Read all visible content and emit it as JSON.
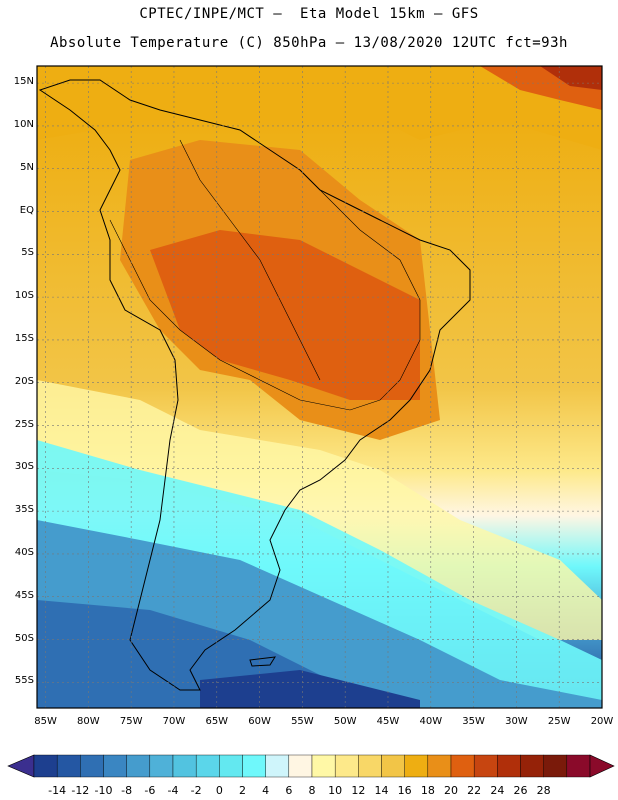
{
  "header": {
    "line1": "CPTEC/INPE/MCT –  Eta Model 15km – GFS",
    "line2": "Absolute Temperature (C) 850hPa – 13/08/2020 12UTC fct=93h"
  },
  "axes": {
    "lat_labels": [
      "15N",
      "10N",
      "5N",
      "EQ",
      "5S",
      "10S",
      "15S",
      "20S",
      "25S",
      "30S",
      "35S",
      "40S",
      "45S",
      "50S",
      "55S"
    ],
    "lat_values": [
      15,
      10,
      5,
      0,
      -5,
      -10,
      -15,
      -20,
      -25,
      -30,
      -35,
      -40,
      -45,
      -50,
      -55
    ],
    "lon_labels": [
      "85W",
      "80W",
      "75W",
      "70W",
      "65W",
      "60W",
      "55W",
      "50W",
      "45W",
      "40W",
      "35W",
      "30W",
      "25W",
      "20W"
    ],
    "lon_values": [
      -85,
      -80,
      -75,
      -70,
      -65,
      -60,
      -55,
      -50,
      -45,
      -40,
      -35,
      -30,
      -25,
      -20
    ],
    "lat_range": [
      -58,
      17
    ],
    "lon_range": [
      -86,
      -20
    ]
  },
  "colorbar": {
    "labels": [
      "-14",
      "-12",
      "-10",
      "-8",
      "-6",
      "-4",
      "-2",
      "0",
      "2",
      "4",
      "6",
      "8",
      "10",
      "12",
      "14",
      "16",
      "18",
      "20",
      "22",
      "24",
      "26",
      "28"
    ],
    "colors": [
      "#1d3f8f",
      "#2457a3",
      "#2f6fb3",
      "#3a86c2",
      "#459ccd",
      "#4fb1d8",
      "#52c3e0",
      "#5bd6ea",
      "#63e8f0",
      "#6ff8fb",
      "#cff5fb",
      "#fff6e3",
      "#fff8a6",
      "#fde98a",
      "#f8d767",
      "#f2c547",
      "#eeae12",
      "#e98f18",
      "#df6010",
      "#c74510",
      "#b02f0a",
      "#952208",
      "#7a1a0a",
      "#8a0a2a"
    ],
    "below_color": "#3b2f8f",
    "above_color": "#8a0a2a"
  }
}
